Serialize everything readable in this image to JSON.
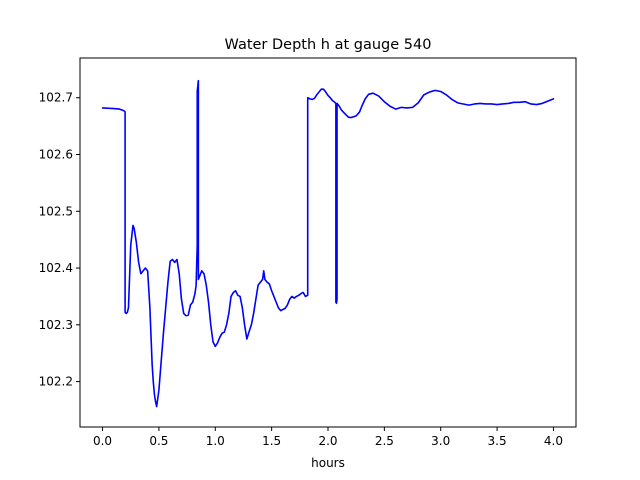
{
  "chart_data": {
    "type": "line",
    "title": "Water Depth h at gauge 540",
    "xlabel": "hours",
    "ylabel": "",
    "xlim": [
      -0.2,
      4.2
    ],
    "ylim": [
      102.12,
      102.77
    ],
    "x_ticks": [
      0.0,
      0.5,
      1.0,
      1.5,
      2.0,
      2.5,
      3.0,
      3.5,
      4.0
    ],
    "x_tick_labels": [
      "0.0",
      "0.5",
      "1.0",
      "1.5",
      "2.0",
      "2.5",
      "3.0",
      "3.5",
      "4.0"
    ],
    "y_ticks": [
      102.2,
      102.3,
      102.4,
      102.5,
      102.6,
      102.7
    ],
    "y_tick_labels": [
      "102.2",
      "102.3",
      "102.4",
      "102.5",
      "102.6",
      "102.7"
    ],
    "grid": false,
    "legend": "none",
    "series": [
      {
        "color": "#0000ff",
        "x": [
          0.0,
          0.1,
          0.15,
          0.19,
          0.2,
          0.2,
          0.21,
          0.22,
          0.23,
          0.25,
          0.27,
          0.28,
          0.3,
          0.32,
          0.34,
          0.36,
          0.38,
          0.4,
          0.42,
          0.43,
          0.44,
          0.45,
          0.46,
          0.47,
          0.48,
          0.5,
          0.52,
          0.54,
          0.56,
          0.58,
          0.6,
          0.62,
          0.64,
          0.66,
          0.68,
          0.7,
          0.72,
          0.74,
          0.76,
          0.78,
          0.8,
          0.82,
          0.83,
          0.84,
          0.84,
          0.845,
          0.85,
          0.85,
          0.86,
          0.88,
          0.9,
          0.92,
          0.94,
          0.96,
          0.98,
          1.0,
          1.02,
          1.04,
          1.06,
          1.08,
          1.1,
          1.12,
          1.14,
          1.16,
          1.18,
          1.2,
          1.22,
          1.24,
          1.26,
          1.28,
          1.3,
          1.32,
          1.34,
          1.36,
          1.38,
          1.4,
          1.42,
          1.43,
          1.44,
          1.46,
          1.48,
          1.5,
          1.52,
          1.54,
          1.56,
          1.58,
          1.6,
          1.62,
          1.64,
          1.66,
          1.68,
          1.7,
          1.72,
          1.74,
          1.76,
          1.78,
          1.8,
          1.82,
          1.82,
          1.84,
          1.86,
          1.88,
          1.9,
          1.92,
          1.94,
          1.96,
          1.98,
          2.0,
          2.02,
          2.04,
          2.06,
          2.07,
          2.07,
          2.075,
          2.08,
          2.08,
          2.1,
          2.12,
          2.15,
          2.18,
          2.2,
          2.22,
          2.25,
          2.28,
          2.3,
          2.33,
          2.36,
          2.4,
          2.45,
          2.5,
          2.55,
          2.6,
          2.65,
          2.7,
          2.75,
          2.8,
          2.85,
          2.9,
          2.95,
          3.0,
          3.05,
          3.1,
          3.15,
          3.2,
          3.25,
          3.3,
          3.35,
          3.4,
          3.45,
          3.5,
          3.55,
          3.6,
          3.65,
          3.7,
          3.75,
          3.8,
          3.85,
          3.9,
          3.95,
          4.0
        ],
        "y": [
          102.682,
          102.681,
          102.68,
          102.677,
          102.675,
          102.322,
          102.32,
          102.322,
          102.33,
          102.44,
          102.475,
          102.47,
          102.445,
          102.41,
          102.39,
          102.395,
          102.4,
          102.395,
          102.33,
          102.28,
          102.23,
          102.2,
          102.178,
          102.165,
          102.156,
          102.185,
          102.235,
          102.285,
          102.33,
          102.375,
          102.412,
          102.415,
          102.41,
          102.415,
          102.39,
          102.345,
          102.32,
          102.316,
          102.317,
          102.335,
          102.34,
          102.355,
          102.37,
          102.44,
          102.712,
          102.72,
          102.73,
          102.38,
          102.385,
          102.395,
          102.39,
          102.37,
          102.34,
          102.3,
          102.27,
          102.262,
          102.268,
          102.278,
          102.285,
          102.287,
          102.3,
          102.32,
          102.35,
          102.357,
          102.36,
          102.352,
          102.35,
          102.33,
          102.3,
          102.275,
          102.288,
          102.3,
          102.32,
          102.345,
          102.37,
          102.375,
          102.38,
          102.395,
          102.38,
          102.375,
          102.372,
          102.36,
          102.35,
          102.34,
          102.33,
          102.325,
          102.327,
          102.329,
          102.335,
          102.345,
          102.35,
          102.347,
          102.35,
          102.352,
          102.355,
          102.357,
          102.35,
          102.352,
          102.7,
          102.698,
          102.697,
          102.699,
          102.705,
          102.71,
          102.715,
          102.715,
          102.71,
          102.704,
          102.7,
          102.695,
          102.692,
          102.69,
          102.34,
          102.338,
          102.345,
          102.69,
          102.685,
          102.678,
          102.672,
          102.666,
          102.665,
          102.666,
          102.668,
          102.675,
          102.685,
          102.698,
          102.706,
          102.708,
          102.703,
          102.693,
          102.685,
          102.68,
          102.683,
          102.682,
          102.683,
          102.691,
          102.705,
          102.71,
          102.713,
          102.711,
          102.705,
          102.697,
          102.691,
          102.689,
          102.687,
          102.689,
          102.69,
          102.689,
          102.689,
          102.688,
          102.689,
          102.69,
          102.692,
          102.692,
          102.693,
          102.689,
          102.688,
          102.69,
          102.694,
          102.698
        ]
      }
    ]
  }
}
